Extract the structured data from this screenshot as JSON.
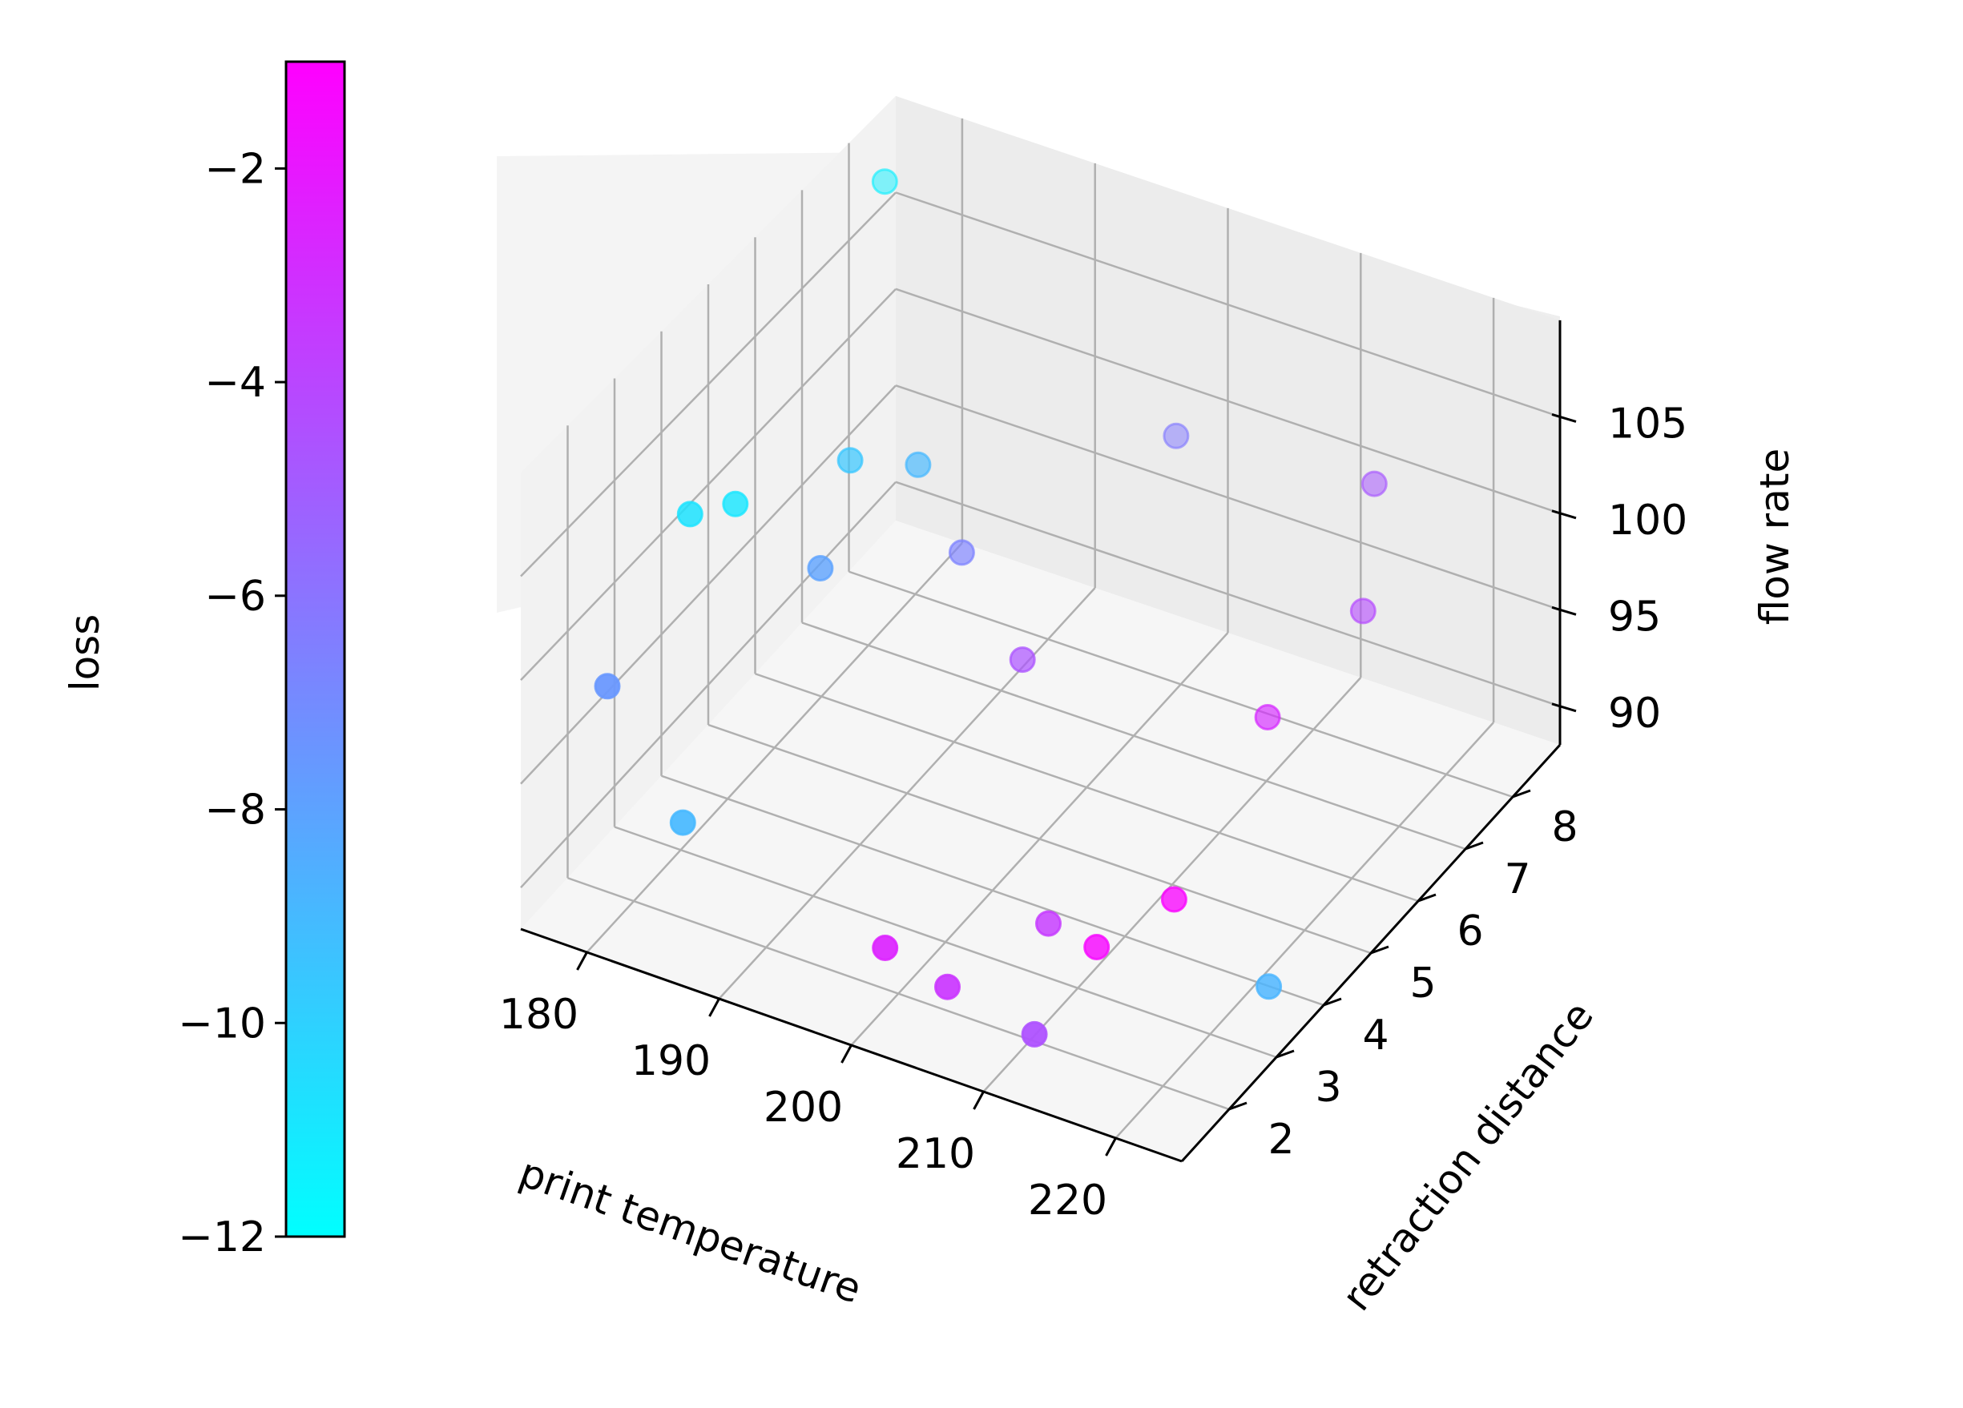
{
  "chart_data": {
    "type": "scatter",
    "title": "",
    "xlabel": "print temperature",
    "ylabel": "retraction distance",
    "zlabel": "flow rate",
    "x_ticks": [
      180,
      190,
      200,
      210,
      220
    ],
    "y_ticks": [
      2,
      3,
      4,
      5,
      6,
      7,
      8
    ],
    "z_ticks": [
      90,
      95,
      100,
      105
    ],
    "xlim": [
      175,
      225
    ],
    "ylim": [
      1,
      9
    ],
    "zlim": [
      88,
      110
    ],
    "grid": true,
    "colorbar": {
      "label": "loss",
      "colormap": "cool",
      "range": [
        -12,
        -1
      ],
      "ticks": [
        -12,
        -10,
        -8,
        -6,
        -4,
        -2
      ],
      "tick_labels": [
        "−12",
        "−10",
        "−8",
        "−6",
        "−4",
        "−2"
      ],
      "color_low": "#00ffff",
      "color_high": "#ff00ff"
    },
    "points": [
      {
        "x": 177,
        "y": 8.2,
        "z": 108,
        "loss": -11.3
      },
      {
        "x": 180,
        "y": 3.2,
        "z": 104,
        "loss": -10.8
      },
      {
        "x": 182,
        "y": 3.6,
        "z": 104,
        "loss": -10.9
      },
      {
        "x": 185,
        "y": 5.2,
        "z": 103,
        "loss": -9.6
      },
      {
        "x": 187,
        "y": 4.0,
        "z": 101,
        "loss": -8.0
      },
      {
        "x": 188,
        "y": 5.8,
        "z": 102,
        "loss": -9.0
      },
      {
        "x": 192,
        "y": 5.6,
        "z": 99,
        "loss": -6.6
      },
      {
        "x": 200,
        "y": 7.9,
        "z": 101,
        "loss": -6.3
      },
      {
        "x": 198,
        "y": 5.2,
        "z": 96,
        "loss": -4.6
      },
      {
        "x": 178,
        "y": 2.0,
        "z": 98,
        "loss": -7.5
      },
      {
        "x": 183,
        "y": 2.2,
        "z": 92,
        "loss": -9.0
      },
      {
        "x": 216,
        "y": 7.6,
        "z": 103,
        "loss": -4.8
      },
      {
        "x": 218,
        "y": 6.8,
        "z": 99,
        "loss": -4.2
      },
      {
        "x": 214,
        "y": 5.9,
        "z": 95,
        "loss": -2.8
      },
      {
        "x": 213,
        "y": 4.2,
        "z": 90,
        "loss": -1.2
      },
      {
        "x": 223,
        "y": 3.4,
        "z": 90,
        "loss": -8.8
      },
      {
        "x": 210,
        "y": 3.4,
        "z": 89,
        "loss": -1.4
      },
      {
        "x": 206,
        "y": 3.5,
        "z": 89,
        "loss": -3.5
      },
      {
        "x": 199,
        "y": 2.0,
        "z": 90,
        "loss": -2.5
      },
      {
        "x": 203,
        "y": 2.2,
        "z": 88.5,
        "loss": -3.3
      },
      {
        "x": 211,
        "y": 1.8,
        "z": 89,
        "loss": -4.5
      }
    ]
  }
}
